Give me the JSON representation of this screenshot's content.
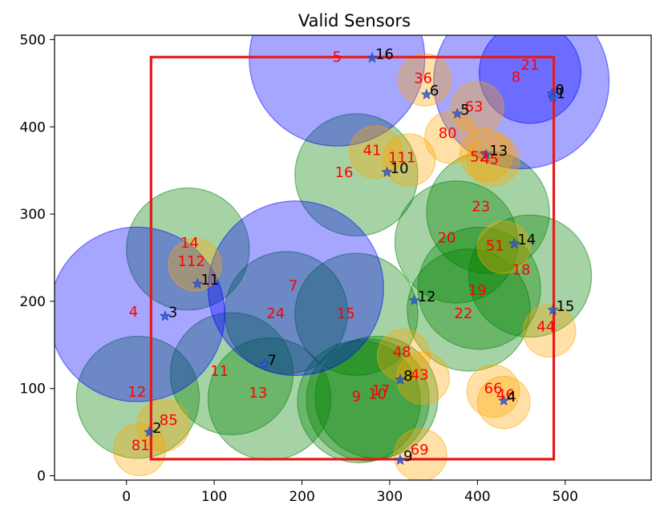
{
  "chart_data": {
    "type": "scatter",
    "title": "Valid Sensors",
    "xlabel": "",
    "ylabel": "",
    "xlim": [
      -82,
      598
    ],
    "ylim": [
      -5,
      505
    ],
    "xticks": [
      0,
      100,
      200,
      300,
      400,
      500
    ],
    "yticks": [
      0,
      100,
      200,
      300,
      400,
      500
    ],
    "grid": false,
    "colors": {
      "blue_circle": "#0000ff",
      "green_circle": "#008000",
      "orange_circle": "#ffa500",
      "region": "#e41a1c",
      "red_label": "#ff0000",
      "black_label": "#000000"
    },
    "region_rectangle": {
      "x": [
        28,
        487
      ],
      "y": [
        19,
        480
      ]
    },
    "blue_circles": [
      {
        "label": "5",
        "x": 240,
        "y": 478,
        "r": 100
      },
      {
        "label": "21",
        "x": 460,
        "y": 462,
        "r": 58
      },
      {
        "label": "8",
        "x": 450,
        "y": 452,
        "r": 100
      },
      {
        "label": "7",
        "x": 193,
        "y": 215,
        "r": 100
      },
      {
        "label": "4",
        "x": 12,
        "y": 185,
        "r": 100
      }
    ],
    "green_circles": [
      {
        "label": "16",
        "x": 262,
        "y": 345,
        "r": 70
      },
      {
        "label": "23",
        "x": 412,
        "y": 302,
        "r": 70
      },
      {
        "label": "20",
        "x": 376,
        "y": 268,
        "r": 70
      },
      {
        "label": "18",
        "x": 460,
        "y": 229,
        "r": 70
      },
      {
        "label": "19",
        "x": 402,
        "y": 215,
        "r": 70
      },
      {
        "label": "22",
        "x": 390,
        "y": 190,
        "r": 70
      },
      {
        "label": "14",
        "x": 70,
        "y": 260,
        "r": 70
      },
      {
        "label": "24",
        "x": 182,
        "y": 187,
        "r": 70
      },
      {
        "label": "15",
        "x": 262,
        "y": 185,
        "r": 70
      },
      {
        "label": "11",
        "x": 120,
        "y": 117,
        "r": 70
      },
      {
        "label": "13",
        "x": 163,
        "y": 88,
        "r": 70
      },
      {
        "label": "12",
        "x": 13,
        "y": 90,
        "r": 70
      },
      {
        "label": "9",
        "x": 265,
        "y": 85,
        "r": 70
      },
      {
        "label": "10",
        "x": 275,
        "y": 87,
        "r": 70
      },
      {
        "label": "17",
        "x": 285,
        "y": 90,
        "r": 70
      }
    ],
    "orange_circles": [
      {
        "label": "36",
        "x": 340,
        "y": 454,
        "r": 30
      },
      {
        "label": "63",
        "x": 400,
        "y": 422,
        "r": 30
      },
      {
        "label": "80",
        "x": 370,
        "y": 388,
        "r": 30
      },
      {
        "label": "41",
        "x": 284,
        "y": 371,
        "r": 30
      },
      {
        "label": "111",
        "x": 322,
        "y": 362,
        "r": 30
      },
      {
        "label": "52",
        "x": 410,
        "y": 368,
        "r": 30
      },
      {
        "label": "45",
        "x": 418,
        "y": 362,
        "r": 30
      },
      {
        "label": "51",
        "x": 430,
        "y": 262,
        "r": 30
      },
      {
        "label": "112",
        "x": 78,
        "y": 242,
        "r": 30
      },
      {
        "label": "44",
        "x": 482,
        "y": 166,
        "r": 30
      },
      {
        "label": "48",
        "x": 316,
        "y": 138,
        "r": 30
      },
      {
        "label": "43",
        "x": 338,
        "y": 112,
        "r": 30
      },
      {
        "label": "66",
        "x": 418,
        "y": 97,
        "r": 30
      },
      {
        "label": "46",
        "x": 430,
        "y": 84,
        "r": 30
      },
      {
        "label": "85",
        "x": 42,
        "y": 58,
        "r": 30
      },
      {
        "label": "81",
        "x": 15,
        "y": 30,
        "r": 30
      },
      {
        "label": "69",
        "x": 335,
        "y": 24,
        "r": 30
      }
    ],
    "red_labels": [
      {
        "text": "5",
        "x": 240,
        "y": 480
      },
      {
        "text": "21",
        "x": 460,
        "y": 471
      },
      {
        "text": "8",
        "x": 444,
        "y": 457
      },
      {
        "text": "36",
        "x": 338,
        "y": 456
      },
      {
        "text": "63",
        "x": 396,
        "y": 423
      },
      {
        "text": "80",
        "x": 366,
        "y": 393
      },
      {
        "text": "41",
        "x": 280,
        "y": 373
      },
      {
        "text": "111",
        "x": 314,
        "y": 365
      },
      {
        "text": "52",
        "x": 402,
        "y": 366
      },
      {
        "text": "45",
        "x": 414,
        "y": 363
      },
      {
        "text": "16",
        "x": 248,
        "y": 348
      },
      {
        "text": "23",
        "x": 404,
        "y": 309
      },
      {
        "text": "20",
        "x": 365,
        "y": 273
      },
      {
        "text": "51",
        "x": 420,
        "y": 264
      },
      {
        "text": "14",
        "x": 72,
        "y": 267
      },
      {
        "text": "112",
        "x": 74,
        "y": 246
      },
      {
        "text": "18",
        "x": 450,
        "y": 236
      },
      {
        "text": "7",
        "x": 190,
        "y": 218
      },
      {
        "text": "19",
        "x": 400,
        "y": 213
      },
      {
        "text": "4",
        "x": 8,
        "y": 188
      },
      {
        "text": "24",
        "x": 170,
        "y": 186
      },
      {
        "text": "15",
        "x": 250,
        "y": 186
      },
      {
        "text": "22",
        "x": 384,
        "y": 186
      },
      {
        "text": "44",
        "x": 478,
        "y": 171
      },
      {
        "text": "48",
        "x": 314,
        "y": 142
      },
      {
        "text": "11",
        "x": 106,
        "y": 120
      },
      {
        "text": "43",
        "x": 334,
        "y": 116
      },
      {
        "text": "66",
        "x": 418,
        "y": 100
      },
      {
        "text": "12",
        "x": 12,
        "y": 96
      },
      {
        "text": "13",
        "x": 150,
        "y": 95
      },
      {
        "text": "17",
        "x": 290,
        "y": 98
      },
      {
        "text": "10",
        "x": 286,
        "y": 94
      },
      {
        "text": "9",
        "x": 262,
        "y": 91
      },
      {
        "text": "46",
        "x": 432,
        "y": 93
      },
      {
        "text": "85",
        "x": 48,
        "y": 64
      },
      {
        "text": "81",
        "x": 16,
        "y": 35
      },
      {
        "text": "69",
        "x": 334,
        "y": 30
      }
    ],
    "sensors": [
      {
        "label": "0",
        "x": 485,
        "y": 438
      },
      {
        "label": "1",
        "x": 486,
        "y": 434
      },
      {
        "label": "16",
        "x": 280,
        "y": 479
      },
      {
        "label": "6",
        "x": 342,
        "y": 437
      },
      {
        "label": "5",
        "x": 377,
        "y": 415
      },
      {
        "label": "13",
        "x": 410,
        "y": 368
      },
      {
        "label": "10",
        "x": 297,
        "y": 348
      },
      {
        "label": "14",
        "x": 442,
        "y": 266
      },
      {
        "label": "11",
        "x": 81,
        "y": 220
      },
      {
        "label": "12",
        "x": 328,
        "y": 201
      },
      {
        "label": "15",
        "x": 486,
        "y": 190
      },
      {
        "label": "3",
        "x": 44,
        "y": 183
      },
      {
        "label": "7",
        "x": 157,
        "y": 128
      },
      {
        "label": "8",
        "x": 312,
        "y": 110
      },
      {
        "label": "4",
        "x": 430,
        "y": 86
      },
      {
        "label": "2",
        "x": 26,
        "y": 50
      },
      {
        "label": "9",
        "x": 312,
        "y": 18
      }
    ]
  }
}
